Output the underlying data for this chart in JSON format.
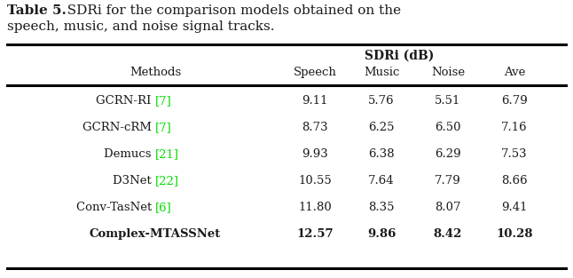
{
  "title_bold": "Table 5.",
  "title_rest": "  SDRi for the comparison models obtained on the\nspeech, music, and noise signal tracks.",
  "header_group": "SDRi (dB)",
  "rows": [
    {
      "method_base": "GCRN-RI ",
      "method_ref": "[7]",
      "speech": "9.11",
      "music": "5.76",
      "noise": "5.51",
      "ave": "6.79",
      "bold": false
    },
    {
      "method_base": "GCRN-cRM ",
      "method_ref": "[7]",
      "speech": "8.73",
      "music": "6.25",
      "noise": "6.50",
      "ave": "7.16",
      "bold": false
    },
    {
      "method_base": "Demucs ",
      "method_ref": "[21]",
      "speech": "9.93",
      "music": "6.38",
      "noise": "6.29",
      "ave": "7.53",
      "bold": false
    },
    {
      "method_base": "D3Net ",
      "method_ref": "[22]",
      "speech": "10.55",
      "music": "7.64",
      "noise": "7.79",
      "ave": "8.66",
      "bold": false
    },
    {
      "method_base": "Conv-TasNet ",
      "method_ref": "[6]",
      "speech": "11.80",
      "music": "8.35",
      "noise": "8.07",
      "ave": "9.41",
      "bold": false
    },
    {
      "method_base": "Complex-MTASSNet",
      "method_ref": "",
      "speech": "12.57",
      "music": "9.86",
      "noise": "8.42",
      "ave": "10.28",
      "bold": true
    }
  ],
  "bg_color": "#ffffff",
  "text_color": "#1a1a1a",
  "ref_color": "#00dd00",
  "title_fontsize": 11,
  "header_fontsize": 9.5,
  "data_fontsize": 9.5,
  "figsize": [
    6.46,
    3.13
  ],
  "dpi": 100
}
